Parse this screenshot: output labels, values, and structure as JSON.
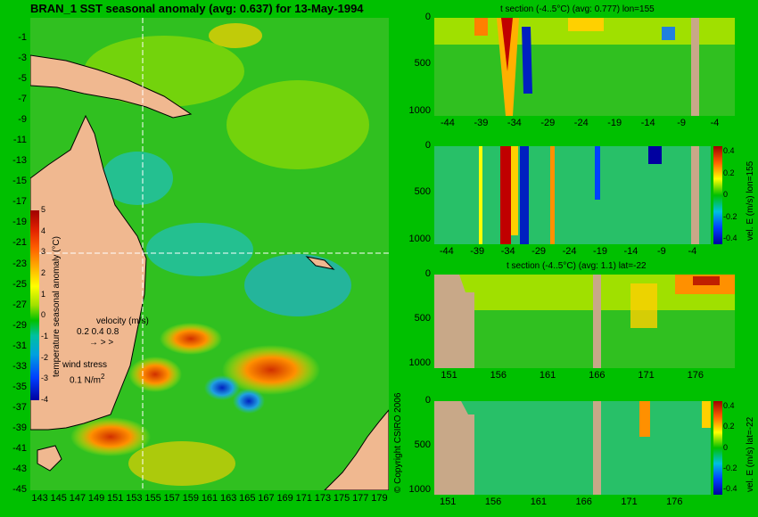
{
  "chart_data": [
    {
      "type": "heatmap",
      "title": "BRAN_1 SST seasonal anomaly (avg: 0.637) for 13-May-1994",
      "xticks": [
        143,
        145,
        147,
        149,
        151,
        153,
        155,
        157,
        159,
        161,
        163,
        165,
        167,
        169,
        171,
        173,
        175,
        177,
        179
      ],
      "yticks": [
        -1,
        -3,
        -5,
        -7,
        -9,
        -11,
        -13,
        -15,
        -17,
        -19,
        -21,
        -23,
        -25,
        -27,
        -29,
        -31,
        -33,
        -35,
        -37,
        -39,
        -41,
        -43,
        -45
      ],
      "xlim": [
        142,
        180
      ],
      "ylim": [
        -45,
        1
      ],
      "colorbar": {
        "label": "temperature seasonal anomaly (°C)",
        "ticks": [
          5,
          4,
          3,
          2,
          1,
          0,
          -1,
          -2,
          -3,
          -4
        ],
        "range": [
          -4,
          5
        ]
      },
      "velocity_legend": {
        "label": "velocity (m/s)",
        "values": "0.2 0.4 0.8"
      },
      "wind_legend": {
        "label": "wind stress",
        "value": "0.1 N/m",
        "exp": "2"
      },
      "section_lines": {
        "lon": 155,
        "lat": -22
      }
    },
    {
      "type": "heatmap",
      "title": "t section (-4..5°C) (avg: 0.777) lon=155",
      "xticks": [
        -44,
        -39,
        -34,
        -29,
        -24,
        -19,
        -14,
        -9,
        -4
      ],
      "yticks": [
        0,
        500,
        1000
      ],
      "xlim": [
        -46,
        -1
      ],
      "ylim": [
        1050,
        0
      ]
    },
    {
      "type": "heatmap",
      "xticks": [
        -44,
        -39,
        -34,
        -29,
        -24,
        -19,
        -14,
        -9,
        -4
      ],
      "yticks": [
        0,
        500,
        1000
      ],
      "xlim": [
        -46,
        -1
      ],
      "ylim": [
        1050,
        0
      ],
      "colorbar": {
        "label": "vel. E (m/s) lon=155",
        "ticks": [
          "0.4",
          "0.2",
          "0",
          "-0.2",
          "-0.4"
        ],
        "range": [
          -0.4,
          0.4
        ]
      }
    },
    {
      "type": "heatmap",
      "title": "t section (-4..5°C) (avg: 1.1) lat=-22",
      "xticks": [
        151,
        156,
        161,
        166,
        171,
        176
      ],
      "yticks": [
        0,
        500,
        1000
      ],
      "xlim": [
        149.5,
        180
      ],
      "ylim": [
        1050,
        0
      ]
    },
    {
      "type": "heatmap",
      "xticks": [
        151,
        156,
        161,
        166,
        171,
        176
      ],
      "yticks": [
        0,
        500,
        1000
      ],
      "xlim": [
        149.5,
        180
      ],
      "ylim": [
        1050,
        0
      ],
      "colorbar": {
        "label": "vel. E (m/s) lat=-22",
        "ticks": [
          "0.4",
          "0.2",
          "0",
          "-0.2",
          "-0.4"
        ],
        "range": [
          -0.4,
          0.4
        ]
      }
    }
  ],
  "copyright": "© Copyright CSIRO 2006",
  "colors": {
    "background": "#00c000",
    "land": "#c8a888",
    "warm": "#c00000",
    "cool": "#0000c0"
  }
}
